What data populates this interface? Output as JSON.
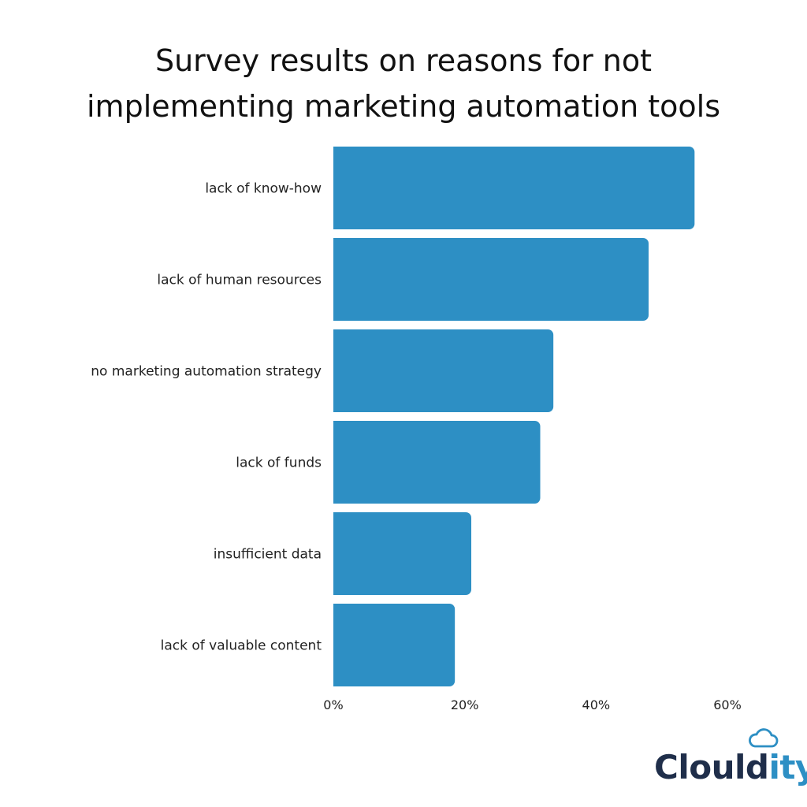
{
  "chart_data": {
    "type": "bar",
    "orientation": "horizontal",
    "title_lines": [
      "Survey results on reasons for not",
      "implementing marketing automation tools"
    ],
    "categories": [
      "lack of know-how",
      "lack of human resources",
      "no marketing automation strategy",
      "lack of funds",
      "insufficient data",
      "lack of valuable content"
    ],
    "values": [
      55,
      48,
      33.5,
      31.5,
      21,
      18.5
    ],
    "xlim": [
      0,
      60
    ],
    "xticks": [
      0,
      20,
      40,
      60
    ],
    "xtick_labels": [
      "0%",
      "20%",
      "40%",
      "60%"
    ],
    "bar_color": "#2d8fc4",
    "grid": false,
    "legend": "none"
  },
  "brand": {
    "name_dark": "Clould",
    "name_accent": "ity",
    "dark_color": "#1f2e4a",
    "accent_color": "#2d8fc4",
    "icon": "cloud-icon"
  }
}
